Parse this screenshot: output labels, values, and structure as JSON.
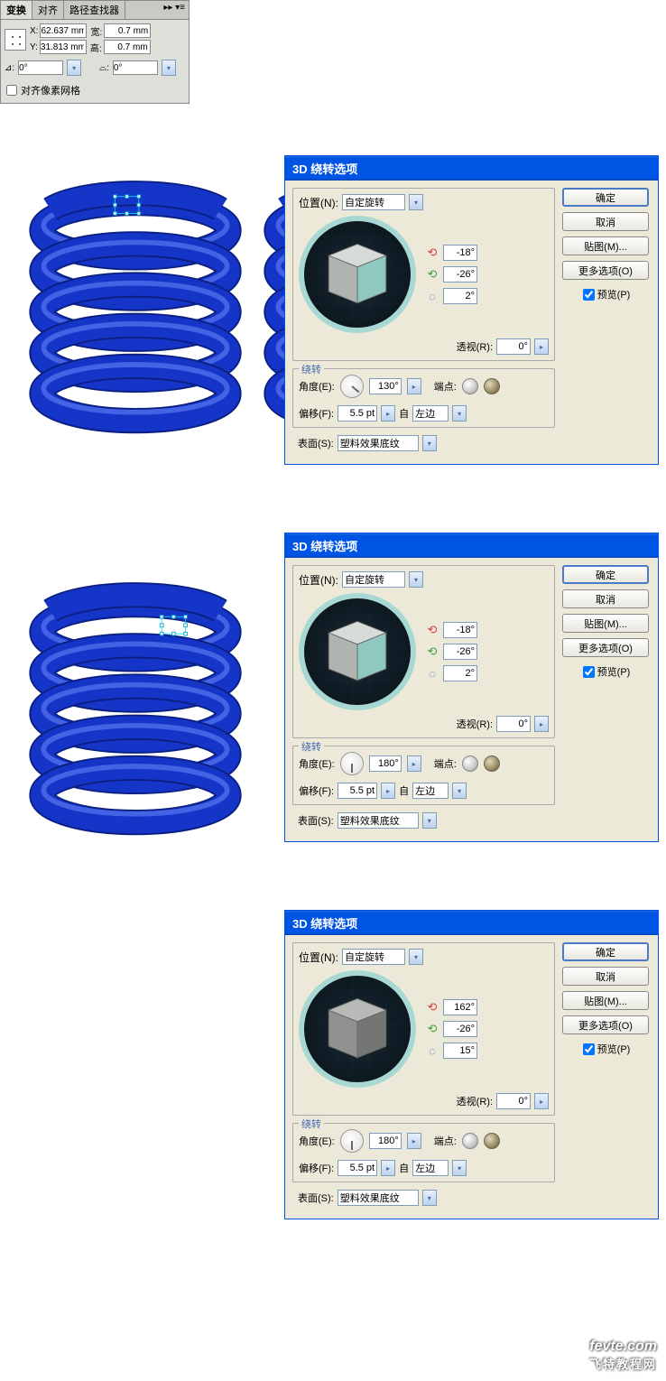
{
  "transform_panel": {
    "tabs": [
      "变换",
      "对齐",
      "路径查找器"
    ],
    "active_tab": 0,
    "x_label": "X:",
    "x_value": "62.637 mm",
    "y_label": "Y:",
    "y_value": "31.813 mm",
    "w_label": "宽:",
    "w_value": "0.7 mm",
    "h_label": "高:",
    "h_value": "0.7 mm",
    "rotate_label": "⊿:",
    "rotate_value": "0°",
    "shear_label": "⌓:",
    "shear_value": "0°",
    "align_pixel_label": "对齐像素网格"
  },
  "dialogs": [
    {
      "title": "3D 绕转选项",
      "position_label": "位置(N):",
      "position_value": "自定旋转",
      "axis_x": "-18°",
      "axis_y": "-26°",
      "axis_z": "2°",
      "cube_colors": {
        "top": "#d8dcd8",
        "left": "#b0b4b0",
        "right": "#8ec8c0"
      },
      "perspective_label": "透视(R):",
      "perspective_value": "0°",
      "revolve_legend": "绕转",
      "angle_label": "角度(E):",
      "angle_value": "130°",
      "dial_angle": 130,
      "endpoint_label": "端点:",
      "offset_label": "偏移(F):",
      "offset_value": "5.5 pt",
      "from_label": "自",
      "from_value": "左边",
      "surface_label": "表面(S):",
      "surface_value": "塑料效果底纹",
      "buttons": {
        "ok": "确定",
        "cancel": "取消",
        "map": "贴图(M)...",
        "more": "更多选项(O)"
      },
      "preview_label": "预览(P)",
      "preview_checked": true
    },
    {
      "title": "3D 绕转选项",
      "position_label": "位置(N):",
      "position_value": "自定旋转",
      "axis_x": "-18°",
      "axis_y": "-26°",
      "axis_z": "2°",
      "cube_colors": {
        "top": "#d8dcd8",
        "left": "#b0b4b0",
        "right": "#8ec8c0"
      },
      "perspective_label": "透视(R):",
      "perspective_value": "0°",
      "revolve_legend": "绕转",
      "angle_label": "角度(E):",
      "angle_value": "180°",
      "dial_angle": 180,
      "endpoint_label": "端点:",
      "offset_label": "偏移(F):",
      "offset_value": "5.5 pt",
      "from_label": "自",
      "from_value": "左边",
      "surface_label": "表面(S):",
      "surface_value": "塑料效果底纹",
      "buttons": {
        "ok": "确定",
        "cancel": "取消",
        "map": "贴图(M)...",
        "more": "更多选项(O)"
      },
      "preview_label": "预览(P)",
      "preview_checked": true
    },
    {
      "title": "3D 绕转选项",
      "position_label": "位置(N):",
      "position_value": "自定旋转",
      "axis_x": "162°",
      "axis_y": "-26°",
      "axis_z": "15°",
      "cube_colors": {
        "top": "#b8bab8",
        "left": "#909290",
        "right": "#747674"
      },
      "perspective_label": "透视(R):",
      "perspective_value": "0°",
      "revolve_legend": "绕转",
      "angle_label": "角度(E):",
      "angle_value": "180°",
      "dial_angle": 180,
      "endpoint_label": "端点:",
      "offset_label": "偏移(F):",
      "offset_value": "5.5 pt",
      "from_label": "自",
      "from_value": "左边",
      "surface_label": "表面(S):",
      "surface_value": "塑料效果底纹",
      "buttons": {
        "ok": "确定",
        "cancel": "取消",
        "map": "贴图(M)...",
        "more": "更多选项(O)"
      },
      "preview_label": "预览(P)",
      "preview_checked": true
    }
  ],
  "spring": {
    "color_main": "#1535c8",
    "color_dark": "#0a1f80",
    "color_highlight": "#5878f0",
    "coils": 5
  },
  "watermark": {
    "line1": "fevte.com",
    "line2": "飞特教程网"
  }
}
